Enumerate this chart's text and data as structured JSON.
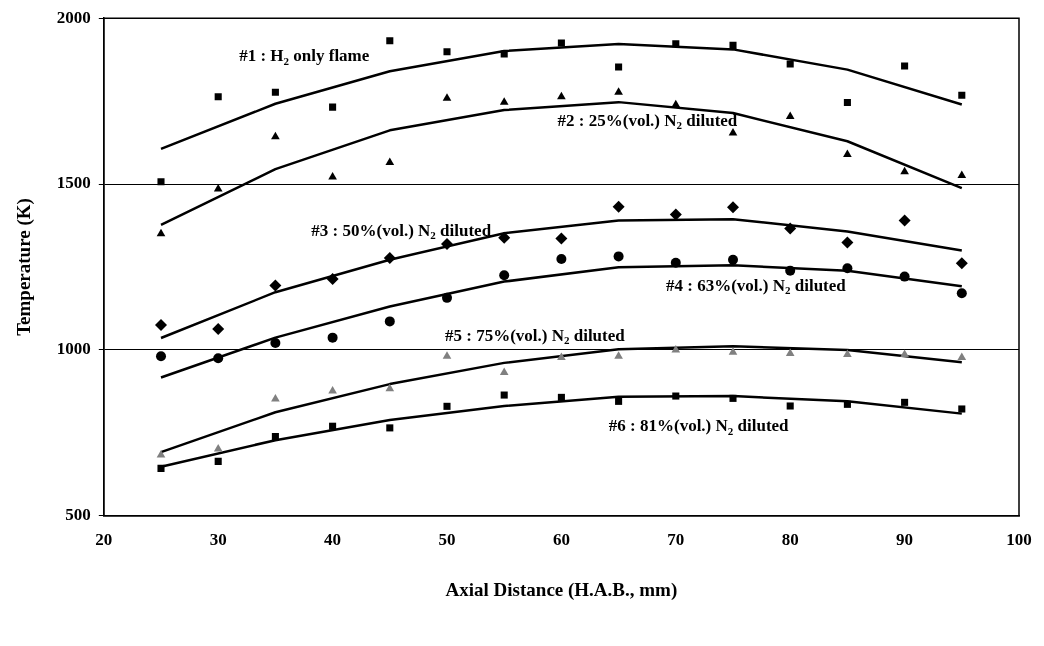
{
  "chart_data": {
    "type": "scatter",
    "xlabel": "Axial Distance (H.A.B., mm)",
    "ylabel": "Temperature (K)",
    "xlim": [
      20,
      100
    ],
    "xticks": [
      20,
      30,
      40,
      50,
      60,
      70,
      80,
      90,
      100
    ],
    "ylim": [
      500,
      2000
    ],
    "yticks": [
      500,
      1000,
      1500,
      2000
    ],
    "grid": "y",
    "legend": false,
    "x": [
      25,
      30,
      35,
      40,
      45,
      50,
      55,
      60,
      65,
      70,
      75,
      80,
      85,
      90,
      95
    ],
    "series": [
      {
        "color": "#000000",
        "marker": "square",
        "values": [
          1507,
          1763,
          1777,
          1732,
          1932,
          1899,
          1892,
          1925,
          1853,
          1923,
          1918,
          1862,
          1746,
          1856,
          1768
        ]
      },
      {
        "color": "#000000",
        "marker": "triangle",
        "values": [
          1350,
          1485,
          1643,
          1521,
          1565,
          1759,
          1747,
          1763,
          1777,
          1739,
          1654,
          1704,
          1589,
          1537,
          1526
        ]
      },
      {
        "color": "#000000",
        "marker": "diamond",
        "values": [
          1075,
          1063,
          1194,
          1214,
          1277,
          1319,
          1338,
          1336,
          1432,
          1408,
          1430,
          1366,
          1324,
          1390,
          1261
        ]
      },
      {
        "color": "#000000",
        "marker": "circle",
        "values": [
          981,
          975,
          1021,
          1037,
          1086,
          1157,
          1225,
          1274,
          1282,
          1263,
          1272,
          1239,
          1246,
          1221,
          1171
        ]
      },
      {
        "color": "#808080",
        "marker": "triangle",
        "values": [
          683,
          701,
          852,
          876,
          883,
          981,
          932,
          977,
          981,
          1000,
          993,
          989,
          986,
          986,
          977
        ]
      },
      {
        "color": "#000000",
        "marker": "square",
        "values": [
          643,
          664,
          739,
          770,
          765,
          830,
          864,
          857,
          845,
          861,
          854,
          831,
          836,
          842,
          822
        ]
      },
      {
        "type": "line",
        "color": "#000000",
        "marker": "none",
        "x": [
          25,
          35,
          45,
          55,
          65,
          75,
          85,
          95
        ],
        "values": [
          1606,
          1742,
          1840,
          1901,
          1922,
          1906,
          1845,
          1740
        ]
      },
      {
        "type": "line",
        "color": "#000000",
        "marker": "none",
        "x": [
          25,
          35,
          45,
          55,
          65,
          75,
          85,
          95
        ],
        "values": [
          1377,
          1545,
          1662,
          1723,
          1747,
          1714,
          1629,
          1488
        ]
      },
      {
        "type": "line",
        "color": "#000000",
        "marker": "none",
        "x": [
          25,
          35,
          45,
          55,
          65,
          75,
          85,
          95
        ],
        "values": [
          1036,
          1174,
          1272,
          1352,
          1390,
          1394,
          1357,
          1300
        ]
      },
      {
        "type": "line",
        "color": "#000000",
        "marker": "none",
        "x": [
          25,
          35,
          45,
          55,
          65,
          75,
          85,
          95
        ],
        "values": [
          917,
          1037,
          1131,
          1206,
          1249,
          1255,
          1239,
          1192
        ]
      },
      {
        "type": "line",
        "color": "#000000",
        "marker": "none",
        "x": [
          25,
          35,
          45,
          55,
          65,
          75,
          85,
          95
        ],
        "values": [
          692,
          812,
          897,
          961,
          1002,
          1011,
          1000,
          963
        ]
      },
      {
        "type": "line",
        "color": "#000000",
        "marker": "none",
        "x": [
          25,
          35,
          45,
          55,
          65,
          75,
          85,
          95
        ],
        "values": [
          648,
          728,
          789,
          831,
          859,
          861,
          845,
          808
        ]
      }
    ],
    "annotations": [
      "#1 : H$_{2}$ only flame",
      "#2 : 25%(vol.) N$_{2}$ diluted",
      "#3 : 50%(vol.) N$_{2}$ diluted",
      "#4 : 63%(vol.) N$_{2}$ diluted",
      "#5 : 75%(vol.) N$_{2}$ diluted",
      "#6 : 81%(vol.) N$_{2}$ diluted"
    ]
  }
}
